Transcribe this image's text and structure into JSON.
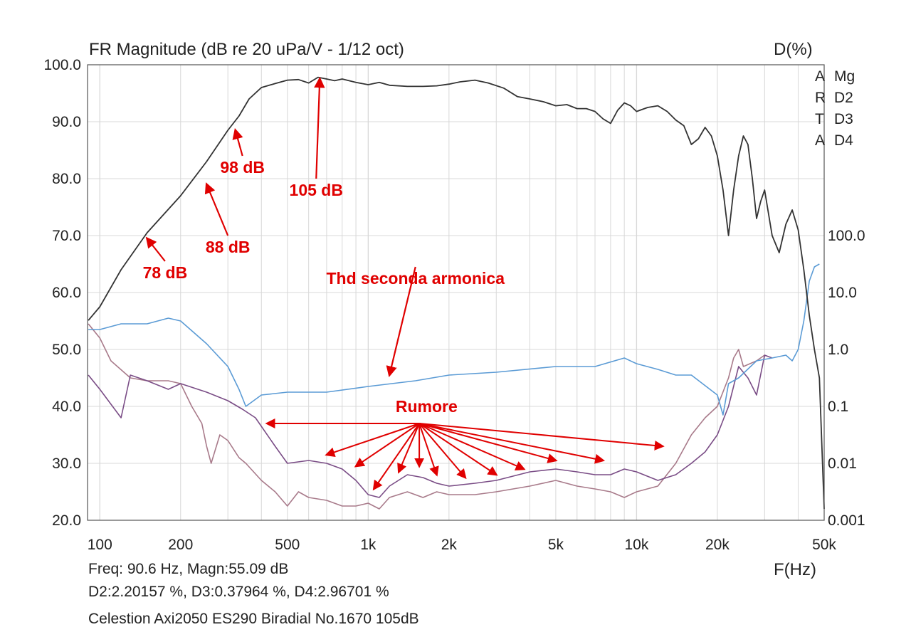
{
  "chart_data": {
    "type": "line",
    "title": "FR Magnitude (dB re 20 uPa/V - 1/12 oct)",
    "right_axis_title": "D(%)",
    "xlabel": "F(Hz)",
    "x_scale": "log",
    "xlim": [
      90,
      50000
    ],
    "ylim": [
      20,
      100
    ],
    "right_scale": "log",
    "right_ylim": [
      0.001,
      100
    ],
    "grid": true,
    "x_ticks": [
      "100",
      "200",
      "500",
      "1k",
      "2k",
      "5k",
      "10k",
      "20k",
      "50k"
    ],
    "y_ticks": [
      "100.0",
      "90.0",
      "80.0",
      "70.0",
      "60.0",
      "50.0",
      "40.0",
      "30.0",
      "20.0"
    ],
    "right_ticks": [
      "100.0",
      "10.0",
      "1.0",
      "0.1",
      "0.01",
      "0.001"
    ],
    "legend": {
      "placement": "top-right",
      "items": [
        {
          "letter": "A",
          "label": "Mg"
        },
        {
          "letter": "R",
          "label": "D2"
        },
        {
          "letter": "T",
          "label": "D3"
        },
        {
          "letter": "A",
          "label": "D4"
        }
      ]
    },
    "series": [
      {
        "name": "Mg",
        "axis": "left",
        "color": "#333333",
        "points": [
          [
            90.6,
            55.1
          ],
          [
            100,
            57.5
          ],
          [
            120,
            64
          ],
          [
            150,
            70.5
          ],
          [
            200,
            77
          ],
          [
            250,
            83
          ],
          [
            300,
            88.5
          ],
          [
            330,
            91
          ],
          [
            360,
            94
          ],
          [
            400,
            96
          ],
          [
            450,
            96.7
          ],
          [
            500,
            97.3
          ],
          [
            550,
            97.4
          ],
          [
            600,
            96.8
          ],
          [
            650,
            97.8
          ],
          [
            700,
            97.5
          ],
          [
            750,
            97.2
          ],
          [
            800,
            97.5
          ],
          [
            900,
            96.9
          ],
          [
            1000,
            96.5
          ],
          [
            1100,
            96.9
          ],
          [
            1200,
            96.4
          ],
          [
            1400,
            96.2
          ],
          [
            1600,
            96.2
          ],
          [
            1800,
            96.3
          ],
          [
            2000,
            96.6
          ],
          [
            2200,
            97
          ],
          [
            2500,
            97.3
          ],
          [
            2800,
            96.8
          ],
          [
            3200,
            95.9
          ],
          [
            3600,
            94.4
          ],
          [
            4000,
            94
          ],
          [
            4500,
            93.5
          ],
          [
            5000,
            92.8
          ],
          [
            5500,
            93
          ],
          [
            6000,
            92.3
          ],
          [
            6500,
            92.3
          ],
          [
            7000,
            91.8
          ],
          [
            7500,
            90.5
          ],
          [
            8000,
            89.7
          ],
          [
            8500,
            92
          ],
          [
            9000,
            93.3
          ],
          [
            9500,
            92.8
          ],
          [
            10000,
            91.8
          ],
          [
            11000,
            92.5
          ],
          [
            12000,
            92.8
          ],
          [
            13000,
            91.8
          ],
          [
            14000,
            90.3
          ],
          [
            15000,
            89.3
          ],
          [
            16000,
            86
          ],
          [
            17000,
            87
          ],
          [
            18000,
            89
          ],
          [
            19000,
            87.5
          ],
          [
            20000,
            84
          ],
          [
            21000,
            78
          ],
          [
            22000,
            70
          ],
          [
            23000,
            78
          ],
          [
            24000,
            84
          ],
          [
            25000,
            87.5
          ],
          [
            26000,
            86
          ],
          [
            27000,
            80
          ],
          [
            28000,
            73
          ],
          [
            29000,
            76
          ],
          [
            30000,
            78
          ],
          [
            32000,
            70
          ],
          [
            34000,
            67
          ],
          [
            36000,
            72
          ],
          [
            38000,
            74.5
          ],
          [
            40000,
            71
          ],
          [
            42000,
            64
          ],
          [
            44000,
            56
          ],
          [
            46000,
            50
          ],
          [
            48000,
            45
          ],
          [
            50000,
            22
          ]
        ]
      },
      {
        "name": "D2",
        "axis": "left",
        "color": "#5b9bd5",
        "points": [
          [
            90.6,
            53.5
          ],
          [
            100,
            53.5
          ],
          [
            120,
            54.5
          ],
          [
            150,
            54.5
          ],
          [
            180,
            55.5
          ],
          [
            200,
            55
          ],
          [
            250,
            51
          ],
          [
            300,
            47
          ],
          [
            330,
            43
          ],
          [
            350,
            40
          ],
          [
            400,
            42
          ],
          [
            500,
            42.5
          ],
          [
            700,
            42.5
          ],
          [
            1000,
            43.5
          ],
          [
            1500,
            44.5
          ],
          [
            2000,
            45.5
          ],
          [
            3000,
            46
          ],
          [
            5000,
            47
          ],
          [
            7000,
            47
          ],
          [
            9000,
            48.5
          ],
          [
            10000,
            47.5
          ],
          [
            12000,
            46.5
          ],
          [
            14000,
            45.5
          ],
          [
            16000,
            45.5
          ],
          [
            20000,
            42
          ],
          [
            21000,
            38.5
          ],
          [
            22000,
            44
          ],
          [
            24000,
            45
          ],
          [
            28000,
            48
          ],
          [
            32000,
            48.5
          ],
          [
            36000,
            49
          ],
          [
            38000,
            48
          ],
          [
            40000,
            50
          ],
          [
            42000,
            55
          ],
          [
            44000,
            62
          ],
          [
            46000,
            64.5
          ],
          [
            48000,
            65
          ]
        ]
      },
      {
        "name": "D3",
        "axis": "left",
        "color": "#a87a8a",
        "points": [
          [
            90.6,
            54.5
          ],
          [
            100,
            52
          ],
          [
            110,
            48
          ],
          [
            130,
            45
          ],
          [
            150,
            44.5
          ],
          [
            180,
            44.5
          ],
          [
            200,
            44
          ],
          [
            220,
            40
          ],
          [
            240,
            37
          ],
          [
            250,
            33
          ],
          [
            260,
            30
          ],
          [
            280,
            35
          ],
          [
            300,
            34
          ],
          [
            330,
            31
          ],
          [
            350,
            30
          ],
          [
            400,
            27
          ],
          [
            450,
            25
          ],
          [
            500,
            22.5
          ],
          [
            550,
            25
          ],
          [
            600,
            24
          ],
          [
            700,
            23.5
          ],
          [
            800,
            22.5
          ],
          [
            900,
            22.5
          ],
          [
            1000,
            23
          ],
          [
            1100,
            22
          ],
          [
            1200,
            24
          ],
          [
            1400,
            25
          ],
          [
            1600,
            24
          ],
          [
            1800,
            25
          ],
          [
            2000,
            24.5
          ],
          [
            2500,
            24.5
          ],
          [
            3000,
            25
          ],
          [
            4000,
            26
          ],
          [
            5000,
            27
          ],
          [
            6000,
            26
          ],
          [
            7000,
            25.5
          ],
          [
            8000,
            25
          ],
          [
            9000,
            24
          ],
          [
            10000,
            25
          ],
          [
            12000,
            26
          ],
          [
            14000,
            30
          ],
          [
            16000,
            35
          ],
          [
            18000,
            38
          ],
          [
            20000,
            40
          ],
          [
            22000,
            45
          ],
          [
            23000,
            48.5
          ],
          [
            24000,
            50
          ],
          [
            25000,
            47
          ],
          [
            28000,
            48
          ],
          [
            30000,
            49
          ]
        ]
      },
      {
        "name": "D4",
        "axis": "left",
        "color": "#7a4d86",
        "points": [
          [
            90.6,
            45.5
          ],
          [
            100,
            43
          ],
          [
            120,
            38
          ],
          [
            130,
            45.5
          ],
          [
            150,
            44.5
          ],
          [
            180,
            43
          ],
          [
            200,
            44
          ],
          [
            250,
            42.5
          ],
          [
            300,
            41
          ],
          [
            340,
            39.5
          ],
          [
            380,
            38
          ],
          [
            450,
            33
          ],
          [
            500,
            30
          ],
          [
            600,
            30.5
          ],
          [
            700,
            30
          ],
          [
            800,
            29
          ],
          [
            900,
            27
          ],
          [
            1000,
            24.5
          ],
          [
            1100,
            24
          ],
          [
            1200,
            26
          ],
          [
            1400,
            28
          ],
          [
            1600,
            27.5
          ],
          [
            1800,
            26.5
          ],
          [
            2000,
            26
          ],
          [
            2500,
            26.5
          ],
          [
            3000,
            27
          ],
          [
            4000,
            28.5
          ],
          [
            5000,
            29
          ],
          [
            6000,
            28.5
          ],
          [
            7000,
            28
          ],
          [
            8000,
            28
          ],
          [
            9000,
            29
          ],
          [
            10000,
            28.5
          ],
          [
            12000,
            27
          ],
          [
            14000,
            28
          ],
          [
            16000,
            30
          ],
          [
            18000,
            32
          ],
          [
            20000,
            35
          ],
          [
            22000,
            40
          ],
          [
            24000,
            47
          ],
          [
            26000,
            45
          ],
          [
            28000,
            42
          ],
          [
            30000,
            49
          ],
          [
            32000,
            48.5
          ]
        ]
      }
    ],
    "annotations": {
      "labels": [
        {
          "text": "78 dB",
          "at": [
            175,
            62.5
          ],
          "arrow_to": [
            150,
            69.5
          ]
        },
        {
          "text": "88 dB",
          "at": [
            300,
            67
          ],
          "arrow_to": [
            250,
            79
          ]
        },
        {
          "text": "98 dB",
          "at": [
            340,
            81
          ],
          "arrow_to": [
            320,
            88.5
          ]
        },
        {
          "text": "105 dB",
          "at": [
            640,
            77
          ],
          "arrow_to": [
            660,
            97.5
          ]
        },
        {
          "text": "Thd seconda armonica",
          "at": [
            1500,
            61.5
          ],
          "arrow_to": [
            1200,
            45.5
          ]
        }
      ],
      "rumore": {
        "text": "Rumore",
        "at": [
          1650,
          39
        ],
        "source": [
          1550,
          37
        ],
        "targets": [
          [
            420,
            37
          ],
          [
            700,
            31.5
          ],
          [
            900,
            29.5
          ],
          [
            1050,
            25.5
          ],
          [
            1300,
            28.5
          ],
          [
            1550,
            29.5
          ],
          [
            1800,
            28
          ],
          [
            2300,
            27.5
          ],
          [
            3000,
            28
          ],
          [
            3800,
            29
          ],
          [
            5000,
            30.5
          ],
          [
            7500,
            30.5
          ],
          [
            12500,
            33
          ]
        ]
      }
    }
  },
  "readout": {
    "line1": "Freq: 90.6 Hz, Magn:55.09 dB",
    "line2": "D2:2.20157 %, D3:0.37964 %, D4:2.96701 %",
    "line3": "Celestion Axi2050 ES290 Biradial No.1670 105dB"
  },
  "colors": {
    "grid": "#d8d8d8",
    "frame": "#555555",
    "annotation": "#e00000",
    "legend_letter": "#c03030"
  }
}
